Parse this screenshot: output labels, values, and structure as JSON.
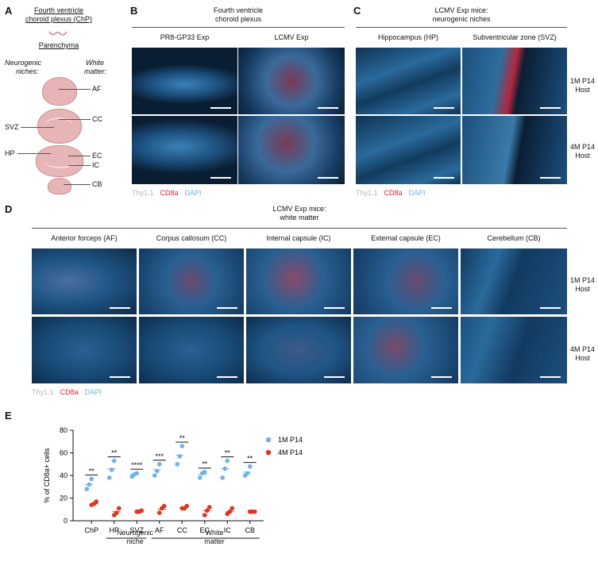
{
  "panelA": {
    "letter": "A",
    "title_line1": "Fourth ventricle",
    "title_line2": "choroid plexus (ChP)",
    "parenchyma": "Parenchyma",
    "niches_line1": "Neurogenic",
    "niches_line2": "niches:",
    "white_line1": "White",
    "white_line2": "matter:",
    "labels": {
      "af": "AF",
      "cc": "CC",
      "svz": "SVZ",
      "hp": "HP",
      "ec": "EC",
      "ic": "IC",
      "cb": "CB"
    },
    "colors": {
      "tissue": "#e8b5b6",
      "outline": "#c98e90"
    }
  },
  "panelB": {
    "letter": "B",
    "title_line1": "Fourth ventricle",
    "title_line2": "choroid plexus",
    "col1": "PR8-GP33 Exp",
    "col2": "LCMV Exp"
  },
  "panelC": {
    "letter": "C",
    "title_line1": "LCMV Exp mice:",
    "title_line2": "neurogenic niches",
    "col1": "Hippocampus (HP)",
    "col2": "Subventricular zone (SVZ)",
    "row1_line1": "1M P14",
    "row1_line2": "Host",
    "row2_line1": "4M P14",
    "row2_line2": "Host"
  },
  "stainLegend": {
    "thy": "Thy1.1",
    "cd8": "CD8a",
    "dapi": "DAPI",
    "colors": {
      "thy": "#b5b5b5",
      "cd8": "#e8242a",
      "dapi": "#6cb4e8"
    }
  },
  "panelD": {
    "letter": "D",
    "title_line1": "LCMV Exp mice:",
    "title_line2": "white matter",
    "cols": [
      "Anterior forceps (AF)",
      "Corpus callosum (CC)",
      "Internal capsule (IC)",
      "External capsule (EC)",
      "Cerebellum (CB)"
    ],
    "row1_line1": "1M P14",
    "row1_line2": "Host",
    "row2_line1": "4M P14",
    "row2_line2": "Host"
  },
  "panelE": {
    "letter": "E",
    "group1_line1": "Neurogenic",
    "group1_line2": "niche",
    "group2_line1": "White",
    "group2_line2": "matter"
  },
  "chart_data": {
    "type": "scatter",
    "ylabel": "% of CD8a+ cells",
    "ylim": [
      0,
      80
    ],
    "yticks": [
      0,
      20,
      40,
      60,
      80
    ],
    "categories": [
      "ChP",
      "HP",
      "SVZ",
      "AF",
      "CC",
      "EC",
      "IC",
      "CB"
    ],
    "legend_position": "top-right",
    "series": [
      {
        "name": "1M P14",
        "color": "#6cb4ec",
        "points": [
          [
            28,
            32,
            37
          ],
          [
            38,
            45,
            53
          ],
          [
            39,
            41,
            42
          ],
          [
            40,
            44,
            50
          ],
          [
            50,
            57,
            66
          ],
          [
            38,
            42,
            43
          ],
          [
            38,
            46,
            53
          ],
          [
            40,
            42,
            48
          ]
        ],
        "means": [
          32,
          46,
          41,
          45,
          58,
          41,
          46,
          43
        ]
      },
      {
        "name": "4M P14",
        "color": "#e3331e",
        "points": [
          [
            14,
            15,
            17
          ],
          [
            5,
            7,
            11
          ],
          [
            8,
            8,
            9
          ],
          [
            7,
            11,
            13
          ],
          [
            11,
            11,
            13
          ],
          [
            5,
            9,
            12
          ],
          [
            6,
            8,
            11
          ],
          [
            8,
            8,
            8
          ]
        ],
        "means": [
          15,
          8,
          8,
          10,
          12,
          9,
          8,
          8
        ]
      }
    ],
    "significance": [
      "**",
      "**",
      "****",
      "***",
      "**",
      "**",
      "**",
      "**"
    ]
  }
}
